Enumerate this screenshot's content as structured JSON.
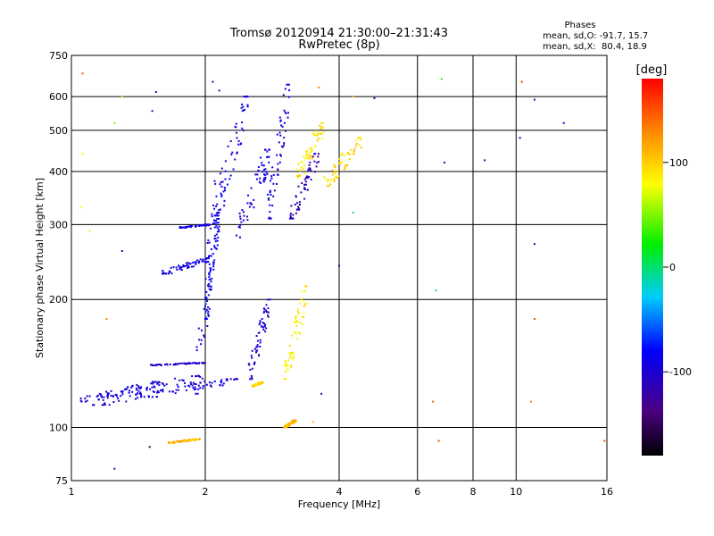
{
  "chart_data": {
    "type": "scatter",
    "title": "Tromsø 20120914 21:30:00–21:31:43",
    "subtitle": "RwPretec (8p)",
    "xlabel": "Frequency [MHz]",
    "ylabel": "Stationary phase Virtual Height [km]",
    "xscale": "log",
    "yscale": "log",
    "xlim": [
      1,
      16
    ],
    "ylim": [
      75,
      750
    ],
    "xticks": [
      "1",
      "2",
      "4",
      "6",
      "8",
      "10",
      "16"
    ],
    "xtick_values": [
      1,
      2,
      4,
      6,
      8,
      10,
      16
    ],
    "xgrid_values": [
      2,
      4,
      6,
      8,
      10
    ],
    "yticks": [
      "75",
      "100",
      "200",
      "300",
      "400",
      "500",
      "600",
      "750"
    ],
    "ytick_values": [
      75,
      100,
      200,
      300,
      400,
      500,
      600,
      750
    ],
    "ygrid_values": [
      100,
      200,
      300,
      400,
      500,
      600
    ],
    "grid": true,
    "legend": "none",
    "stats": {
      "heading": "Phases",
      "line_o": "mean, sd,O: -91.7, 15.7",
      "line_x": "mean, sd,X:  80.4, 18.9"
    },
    "colorbar": {
      "label": "[deg]",
      "ticks": [
        "100",
        "0",
        "-100"
      ],
      "tick_values": [
        100,
        0,
        -100
      ],
      "min": -180,
      "max": 180
    },
    "traces": [
      {
        "f": [
          1.05,
          1.6
        ],
        "h": [
          115,
          128
        ],
        "phase": -95
      },
      {
        "f": [
          1.1,
          2.0
        ],
        "h": [
          113,
          132
        ],
        "phase": -100
      },
      {
        "f": [
          1.4,
          2.4
        ],
        "h": [
          118,
          130
        ],
        "phase": -90
      },
      {
        "f": [
          1.5,
          2.0
        ],
        "h": [
          140,
          142
        ],
        "phase": -100
      },
      {
        "f": [
          1.6,
          2.05
        ],
        "h": [
          230,
          250
        ],
        "phase": -88
      },
      {
        "f": [
          1.75,
          2.05
        ],
        "h": [
          295,
          300
        ],
        "phase": -95
      },
      {
        "f": [
          1.9,
          2.15
        ],
        "h": [
          120,
          380
        ],
        "phase": -92
      },
      {
        "f": [
          2.0,
          2.15
        ],
        "h": [
          180,
          320
        ],
        "phase": -85
      },
      {
        "f": [
          2.1,
          2.5
        ],
        "h": [
          315,
          600
        ],
        "phase": -92
      },
      {
        "f": [
          2.35,
          2.8
        ],
        "h": [
          280,
          450
        ],
        "phase": -95
      },
      {
        "f": [
          2.5,
          2.8
        ],
        "h": [
          130,
          200
        ],
        "phase": -100
      },
      {
        "f": [
          2.75,
          3.1
        ],
        "h": [
          310,
          640
        ],
        "phase": -95
      },
      {
        "f": [
          3.1,
          3.6
        ],
        "h": [
          310,
          440
        ],
        "phase": -115
      },
      {
        "f": [
          3.2,
          3.7
        ],
        "h": [
          380,
          520
        ],
        "phase": 90
      },
      {
        "f": [
          3.0,
          3.4
        ],
        "h": [
          130,
          215
        ],
        "phase": 85
      },
      {
        "f": [
          3.7,
          4.5
        ],
        "h": [
          370,
          480
        ],
        "phase": 95
      },
      {
        "f": [
          1.65,
          1.95
        ],
        "h": [
          92,
          94
        ],
        "phase": 110
      },
      {
        "f": [
          2.55,
          2.7
        ],
        "h": [
          125,
          128
        ],
        "phase": 100
      },
      {
        "f": [
          3.0,
          3.2
        ],
        "h": [
          100,
          104
        ],
        "phase": 110
      }
    ],
    "scatter_points": [
      {
        "f": 1.06,
        "h": 680,
        "phase": 150
      },
      {
        "f": 1.06,
        "h": 440,
        "phase": 80
      },
      {
        "f": 1.05,
        "h": 330,
        "phase": 80
      },
      {
        "f": 1.1,
        "h": 290,
        "phase": 90
      },
      {
        "f": 1.3,
        "h": 600,
        "phase": 60
      },
      {
        "f": 1.25,
        "h": 520,
        "phase": 50
      },
      {
        "f": 1.55,
        "h": 615,
        "phase": -110
      },
      {
        "f": 1.52,
        "h": 555,
        "phase": -120
      },
      {
        "f": 2.08,
        "h": 650,
        "phase": -110
      },
      {
        "f": 2.15,
        "h": 620,
        "phase": -110
      },
      {
        "f": 1.3,
        "h": 260,
        "phase": -110
      },
      {
        "f": 1.2,
        "h": 180,
        "phase": 130
      },
      {
        "f": 1.25,
        "h": 80,
        "phase": -120
      },
      {
        "f": 1.5,
        "h": 90,
        "phase": -150
      },
      {
        "f": 3.6,
        "h": 630,
        "phase": 130
      },
      {
        "f": 4.3,
        "h": 600,
        "phase": 110
      },
      {
        "f": 4.8,
        "h": 595,
        "phase": -110
      },
      {
        "f": 4.0,
        "h": 240,
        "phase": -110
      },
      {
        "f": 4.3,
        "h": 320,
        "phase": -20
      },
      {
        "f": 3.65,
        "h": 120,
        "phase": -110
      },
      {
        "f": 3.5,
        "h": 103,
        "phase": 110
      },
      {
        "f": 6.8,
        "h": 660,
        "phase": 30
      },
      {
        "f": 6.6,
        "h": 210,
        "phase": 0
      },
      {
        "f": 6.5,
        "h": 115,
        "phase": 150
      },
      {
        "f": 6.7,
        "h": 93,
        "phase": 150
      },
      {
        "f": 6.9,
        "h": 420,
        "phase": -110
      },
      {
        "f": 8.5,
        "h": 425,
        "phase": -120
      },
      {
        "f": 10.3,
        "h": 650,
        "phase": 160
      },
      {
        "f": 11.0,
        "h": 590,
        "phase": -110
      },
      {
        "f": 10.2,
        "h": 480,
        "phase": -100
      },
      {
        "f": 11.0,
        "h": 270,
        "phase": -110
      },
      {
        "f": 11.0,
        "h": 180,
        "phase": 150
      },
      {
        "f": 10.8,
        "h": 115,
        "phase": 130
      },
      {
        "f": 12.8,
        "h": 520,
        "phase": -80
      },
      {
        "f": 15.8,
        "h": 93,
        "phase": 160
      }
    ]
  }
}
